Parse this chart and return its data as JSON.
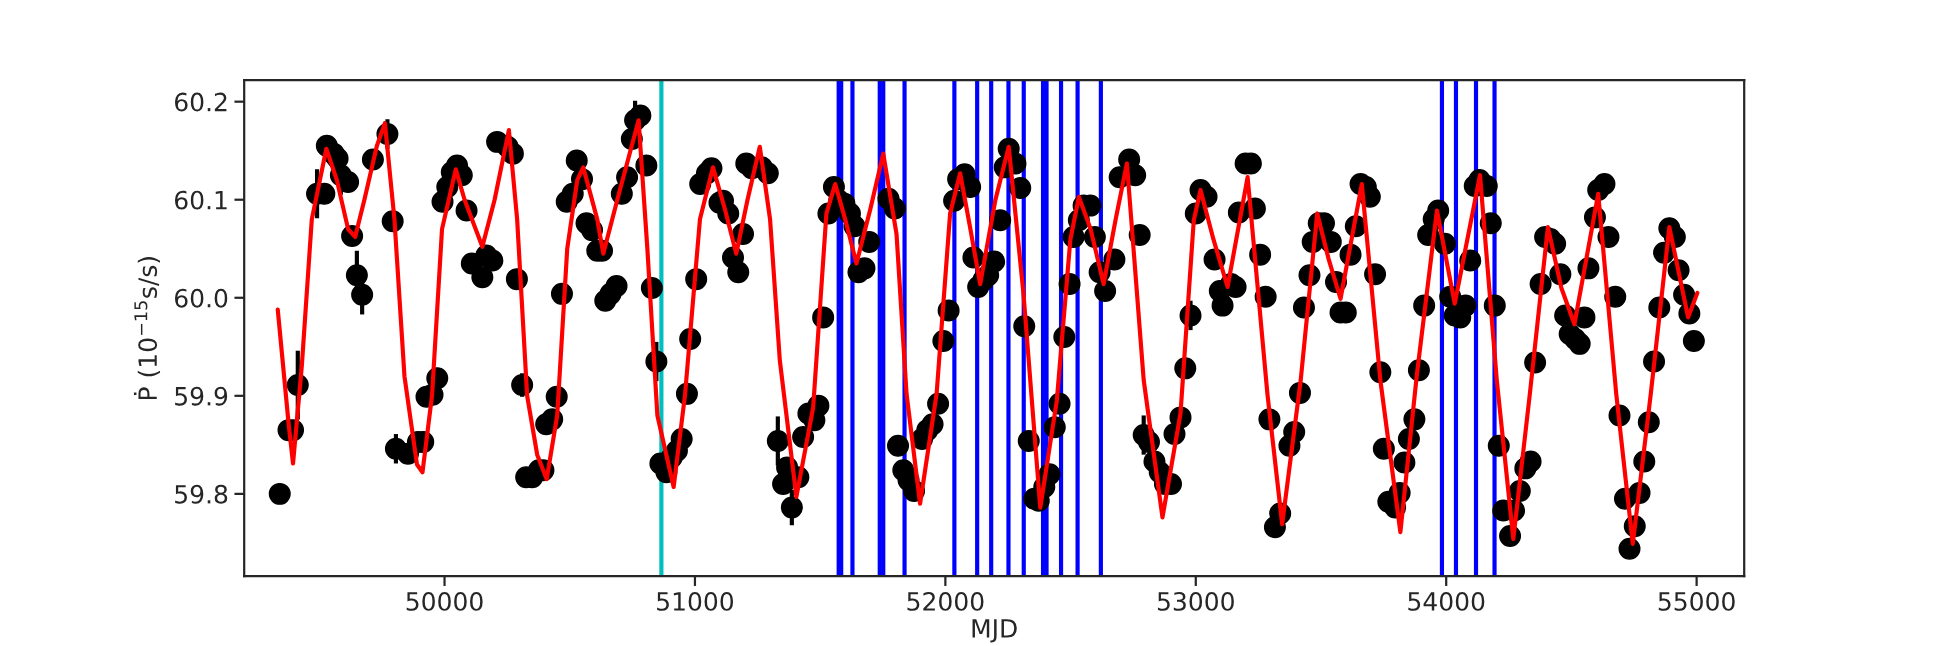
{
  "chart_data": {
    "type": "scatter",
    "xlabel": "MJD",
    "ylabel": "Ṗ (10$^{−15}$s/s)",
    "grid": false,
    "xlim": [
      49200,
      55190
    ],
    "ylim": [
      59.716,
      60.222
    ],
    "xticks": [
      50000,
      51000,
      52000,
      53000,
      54000,
      55000
    ],
    "yticks": [
      59.8,
      59.9,
      {
        "value": 60.0,
        "label": "60.0"
      },
      60.1,
      60.2
    ],
    "series": [
      {
        "marker": "circle",
        "color": "#000000",
        "x": [
          49342,
          49377,
          49395,
          49520,
          49530,
          49557,
          49573,
          49615,
          49631,
          49714,
          49793,
          49854,
          49894,
          49915,
          49928,
          49952,
          49971,
          49992,
          50011,
          50029,
          50050,
          50069,
          50088,
          50109,
          50151,
          50167,
          50191,
          50210,
          50252,
          50273,
          50289,
          50326,
          50350,
          50377,
          50395,
          50406,
          50430,
          50448,
          50469,
          50488,
          50512,
          50528,
          50549,
          50567,
          50589,
          50610,
          50629,
          50642,
          50663,
          50687,
          50708,
          50729,
          50748,
          50782,
          50806,
          50828,
          50862,
          50886,
          50907,
          50928,
          50947,
          50968,
          50981,
          51005,
          51021,
          51048,
          51066,
          51098,
          51112,
          51133,
          51152,
          51173,
          51192,
          51205,
          51227,
          51267,
          51291,
          51352,
          51368,
          51413,
          51432,
          51453,
          51477,
          51493,
          51512,
          51533,
          51555,
          51576,
          51597,
          51619,
          51637,
          51653,
          51677,
          51696,
          51773,
          51798,
          51811,
          51832,
          51853,
          51875,
          51907,
          51928,
          51949,
          51971,
          51992,
          52013,
          52035,
          52051,
          52077,
          52099,
          52112,
          52131,
          52152,
          52171,
          52195,
          52219,
          52237,
          52253,
          52280,
          52299,
          52315,
          52333,
          52355,
          52373,
          52395,
          52416,
          52437,
          52456,
          52475,
          52496,
          52512,
          52533,
          52552,
          52579,
          52597,
          52616,
          52638,
          52675,
          52696,
          52734,
          52758,
          52776,
          52813,
          52835,
          52856,
          52877,
          52901,
          52915,
          52939,
          52958,
          53000,
          53019,
          53043,
          53075,
          53096,
          53107,
          53141,
          53159,
          53172,
          53199,
          53220,
          53236,
          53257,
          53279,
          53294,
          53316,
          53337,
          53374,
          53393,
          53416,
          53432,
          53454,
          53467,
          53491,
          53512,
          53539,
          53560,
          53578,
          53599,
          53618,
          53639,
          53658,
          53679,
          53695,
          53716,
          53737,
          53751,
          53769,
          53796,
          53814,
          53833,
          53851,
          53873,
          53891,
          53912,
          53928,
          53950,
          53968,
          53995,
          54016,
          54034,
          54056,
          54077,
          54096,
          54114,
          54133,
          54162,
          54178,
          54194,
          54210,
          54228,
          54255,
          54271,
          54294,
          54316,
          54337,
          54355,
          54377,
          54395,
          54416,
          54435,
          54456,
          54475,
          54493,
          54515,
          54533,
          54552,
          54568,
          54594,
          54607,
          54632,
          54648,
          54675,
          54692,
          54714,
          54732,
          54753,
          54772,
          54791,
          54809,
          54830,
          54851,
          54870,
          54891,
          54913,
          54928,
          54950,
          54971,
          54989
        ],
        "values": [
          59.8,
          59.865,
          59.865,
          60.106,
          60.155,
          60.147,
          60.142,
          60.118,
          60.063,
          60.141,
          60.078,
          59.841,
          59.853,
          59.853,
          59.899,
          59.901,
          59.918,
          60.098,
          60.113,
          60.128,
          60.135,
          60.125,
          60.089,
          60.035,
          60.021,
          60.043,
          60.038,
          60.159,
          60.154,
          60.147,
          60.019,
          59.817,
          59.817,
          59.824,
          59.824,
          59.871,
          59.876,
          59.899,
          60.004,
          60.098,
          60.106,
          60.14,
          60.121,
          60.076,
          60.069,
          60.048,
          60.048,
          59.997,
          60.004,
          60.012,
          60.106,
          60.123,
          60.162,
          60.186,
          60.135,
          60.01,
          59.831,
          59.822,
          59.837,
          59.844,
          59.856,
          59.902,
          59.958,
          60.019,
          60.116,
          60.127,
          60.132,
          60.097,
          60.099,
          60.086,
          60.041,
          60.026,
          60.065,
          60.137,
          60.132,
          60.133,
          60.127,
          59.81,
          59.827,
          59.817,
          59.858,
          59.882,
          59.875,
          59.89,
          59.98,
          60.086,
          60.113,
          60.099,
          60.096,
          60.086,
          60.073,
          60.026,
          60.03,
          60.057,
          60.101,
          60.091,
          59.849,
          59.824,
          59.814,
          59.803,
          59.856,
          59.865,
          59.871,
          59.892,
          59.956,
          59.987,
          60.099,
          60.121,
          60.126,
          60.113,
          60.041,
          60.011,
          60.018,
          60.023,
          60.037,
          60.079,
          60.133,
          60.152,
          60.137,
          60.112,
          59.971,
          59.854,
          59.795,
          59.793,
          59.807,
          59.82,
          59.868,
          59.892,
          59.96,
          60.014,
          60.062,
          60.079,
          60.094,
          60.094,
          60.062,
          60.026,
          60.007,
          60.039,
          60.123,
          60.141,
          60.125,
          60.064,
          59.853,
          59.833,
          59.822,
          59.81,
          59.81,
          59.861,
          59.878,
          59.928,
          60.086,
          60.11,
          60.103,
          60.039,
          60.007,
          59.992,
          60.014,
          60.011,
          60.087,
          60.137,
          60.137,
          60.091,
          60.044,
          60.001,
          59.876,
          59.766,
          59.78,
          59.849,
          59.863,
          59.903,
          59.99,
          60.023,
          60.057,
          60.076,
          60.076,
          60.057,
          60.016,
          59.985,
          59.985,
          60.044,
          60.073,
          60.116,
          60.113,
          60.103,
          60.024,
          59.924,
          59.846,
          59.792,
          59.786,
          59.801,
          59.832,
          59.856,
          59.876,
          59.926,
          59.992,
          60.064,
          60.08,
          60.089,
          60.055,
          60.001,
          59.982,
          59.98,
          59.992,
          60.038,
          60.114,
          60.12,
          60.114,
          60.076,
          59.992,
          59.849,
          59.783,
          59.757,
          59.783,
          59.803,
          59.826,
          59.833,
          59.934,
          60.014,
          60.062,
          60.06,
          60.055,
          60.024,
          59.982,
          59.963,
          59.958,
          59.953,
          59.98,
          60.03,
          60.082,
          60.11,
          60.116,
          60.062,
          60.001,
          59.88,
          59.795,
          59.744,
          59.767,
          59.801,
          59.833,
          59.873,
          59.935,
          59.99,
          60.046,
          60.071,
          60.062,
          60.028,
          60.003,
          59.984,
          59.956
        ]
      },
      {
        "marker": "circle",
        "color": "#000000",
        "x": [
          49414,
          49491,
          49586,
          49650,
          49671,
          49772,
          49806,
          50310,
          50761,
          50846,
          51331,
          51387,
          52792,
          52979
        ],
        "values": [
          59.911,
          60.106,
          60.125,
          60.023,
          60.003,
          60.167,
          59.846,
          59.911,
          60.181,
          59.935,
          59.854,
          59.786,
          59.86,
          59.982
        ],
        "errors": [
          0.035,
          0.025,
          0.02,
          0.025,
          0.02,
          0.015,
          0.015,
          0.012,
          0.02,
          0.02,
          0.025,
          0.018,
          0.02,
          0.015
        ]
      },
      {
        "type": "line",
        "color": "#ff0000",
        "x": [
          49334,
          49378,
          49395,
          49430,
          49470,
          49528,
          49570,
          49615,
          49643,
          49680,
          49730,
          49762,
          49800,
          49840,
          49890,
          49912,
          49950,
          49990,
          50045,
          50080,
          50151,
          50200,
          50257,
          50290,
          50330,
          50370,
          50408,
          50450,
          50490,
          50530,
          50554,
          50610,
          50634,
          50690,
          50775,
          50810,
          50850,
          50915,
          50960,
          51020,
          51072,
          51120,
          51165,
          51210,
          51259,
          51300,
          51339,
          51405,
          51472,
          51525,
          51560,
          51600,
          51645,
          51700,
          51752,
          51805,
          51845,
          51899,
          51965,
          52019,
          52059,
          52100,
          52139,
          52200,
          52253,
          52312,
          52379,
          52445,
          52499,
          52533,
          52580,
          52632,
          52680,
          52725,
          52792,
          52867,
          52939,
          52992,
          53019,
          53070,
          53127,
          53207,
          53286,
          53345,
          53419,
          53485,
          53530,
          53578,
          53663,
          53737,
          53817,
          53883,
          53963,
          54034,
          54135,
          54202,
          54268,
          54334,
          54406,
          54460,
          54512,
          54607,
          54679,
          54745,
          54817,
          54891,
          54966,
          55003
        ],
        "values": [
          59.988,
          59.87,
          59.831,
          59.93,
          60.08,
          60.152,
          60.12,
          60.07,
          60.062,
          60.1,
          60.155,
          60.178,
          60.08,
          59.92,
          59.83,
          59.822,
          59.9,
          60.07,
          60.131,
          60.1,
          60.052,
          60.1,
          60.171,
          60.08,
          59.9,
          59.84,
          59.815,
          59.88,
          60.05,
          60.12,
          60.133,
          60.08,
          60.045,
          60.1,
          60.181,
          60.05,
          59.88,
          59.807,
          59.9,
          60.08,
          60.133,
          60.09,
          60.045,
          60.1,
          60.154,
          60.08,
          59.936,
          59.797,
          59.888,
          60.086,
          60.116,
          60.08,
          60.035,
          60.09,
          60.147,
          60.065,
          59.902,
          59.79,
          59.902,
          60.086,
          60.127,
          60.07,
          60.014,
          60.1,
          60.154,
          60.004,
          59.786,
          59.895,
          60.059,
          60.103,
          60.07,
          60.014,
          60.08,
          60.137,
          59.916,
          59.776,
          59.882,
          60.079,
          60.11,
          60.06,
          60.011,
          60.123,
          59.902,
          59.769,
          59.916,
          60.086,
          60.04,
          59.999,
          60.116,
          59.916,
          59.761,
          59.922,
          60.089,
          59.994,
          60.125,
          59.916,
          59.754,
          59.902,
          60.072,
          60.01,
          59.973,
          60.106,
          59.902,
          59.749,
          59.902,
          60.072,
          59.98,
          60.005
        ]
      }
    ],
    "ref_lines": [
      {
        "axis": "x",
        "value": 50866,
        "color": "#00bfbf"
      },
      {
        "axis": "x",
        "value": 51574,
        "color": "#0000ff"
      },
      {
        "axis": "x",
        "value": 51584,
        "color": "#0000ff"
      },
      {
        "axis": "x",
        "value": 51629,
        "color": "#0000ff"
      },
      {
        "axis": "x",
        "value": 51738,
        "color": "#0000ff"
      },
      {
        "axis": "x",
        "value": 51752,
        "color": "#0000ff"
      },
      {
        "axis": "x",
        "value": 51837,
        "color": "#0000ff"
      },
      {
        "axis": "x",
        "value": 52036,
        "color": "#0000ff"
      },
      {
        "axis": "x",
        "value": 52127,
        "color": "#0000ff"
      },
      {
        "axis": "x",
        "value": 52183,
        "color": "#0000ff"
      },
      {
        "axis": "x",
        "value": 52252,
        "color": "#0000ff"
      },
      {
        "axis": "x",
        "value": 52313,
        "color": "#0000ff"
      },
      {
        "axis": "x",
        "value": 52390,
        "color": "#0000ff"
      },
      {
        "axis": "x",
        "value": 52404,
        "color": "#0000ff"
      },
      {
        "axis": "x",
        "value": 52462,
        "color": "#0000ff"
      },
      {
        "axis": "x",
        "value": 52528,
        "color": "#0000ff"
      },
      {
        "axis": "x",
        "value": 52621,
        "color": "#0000ff"
      },
      {
        "axis": "x",
        "value": 53983,
        "color": "#0000ff"
      },
      {
        "axis": "x",
        "value": 54039,
        "color": "#0000ff"
      },
      {
        "axis": "x",
        "value": 54119,
        "color": "#0000ff"
      },
      {
        "axis": "x",
        "value": 54193,
        "color": "#0000ff"
      }
    ]
  }
}
